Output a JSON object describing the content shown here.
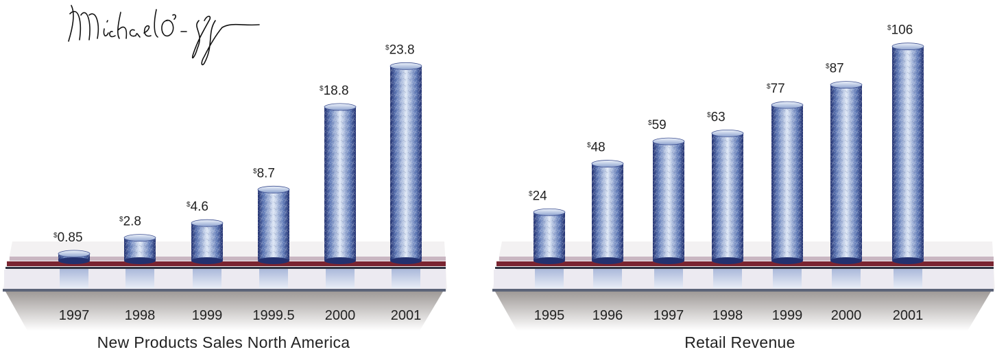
{
  "signature_text": "Michael O-ff",
  "colors": {
    "bar_dark": "#23316f",
    "bar_mid": "#5f79b6",
    "bar_light": "#dfe8f6",
    "stripe_red": "#7a2531",
    "shadow": "#8e8885",
    "label": "#222222"
  },
  "chart_data": [
    {
      "type": "bar",
      "title": "New Products Sales North America",
      "xlabel": "",
      "ylabel": "",
      "categories": [
        "1997",
        "1998",
        "1999",
        "1999.5",
        "2000",
        "2001"
      ],
      "values": [
        0.85,
        2.8,
        4.6,
        8.7,
        18.8,
        23.8
      ],
      "value_labels": [
        "0.85",
        "2.8",
        "4.6",
        "8.7",
        "18.8",
        "23.8"
      ],
      "currency_symbol": "$",
      "ylim": [
        0,
        25
      ],
      "grid": false,
      "legend": "none"
    },
    {
      "type": "bar",
      "title": "Retail Revenue",
      "xlabel": "",
      "ylabel": "",
      "categories": [
        "1995",
        "1996",
        "1997",
        "1998",
        "1999",
        "2000",
        "2001"
      ],
      "values": [
        24,
        48,
        59,
        63,
        77,
        87,
        106
      ],
      "value_labels": [
        "24",
        "48",
        "59",
        "63",
        "77",
        "87",
        "106"
      ],
      "currency_symbol": "$",
      "ylim": [
        0,
        112
      ],
      "grid": false,
      "legend": "none"
    }
  ]
}
